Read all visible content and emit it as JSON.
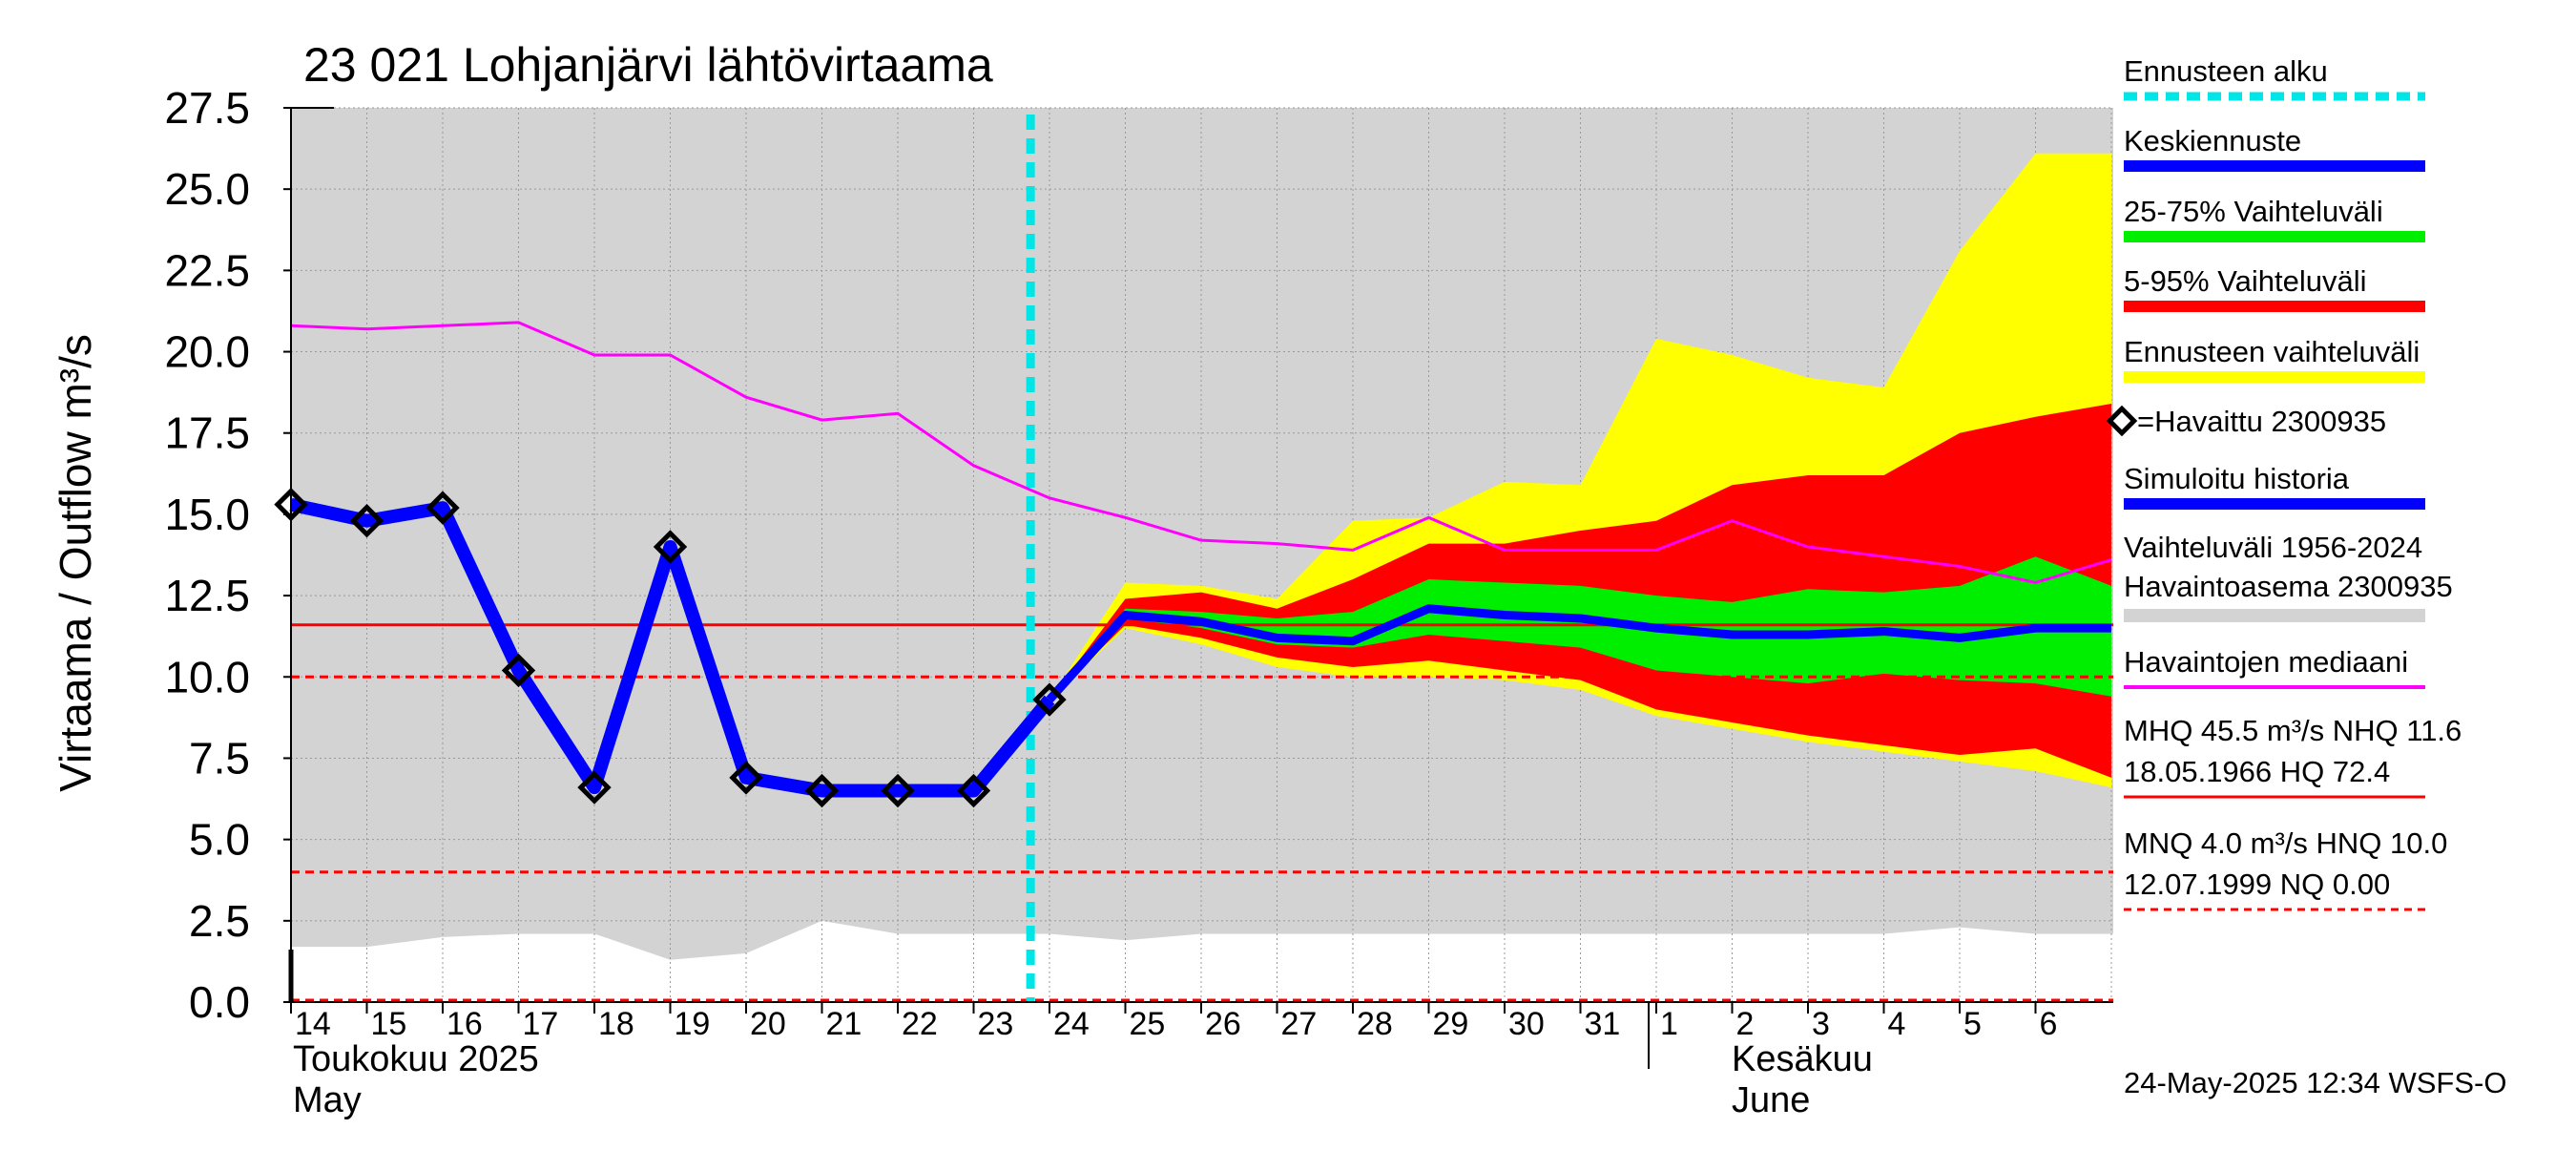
{
  "chart_data": {
    "type": "line",
    "title": "23 021 Lohjanjärvi lähtövirtaama",
    "ylabel": "Virtaama / Outflow    m³/s",
    "ylim": [
      0,
      27.5
    ],
    "y_ticks": [
      "0.0",
      "2.5",
      "5.0",
      "7.5",
      "10.0",
      "12.5",
      "15.0",
      "17.5",
      "20.0",
      "22.5",
      "25.0",
      "27.5"
    ],
    "x_day_labels": [
      "14",
      "15",
      "16",
      "17",
      "18",
      "19",
      "20",
      "21",
      "22",
      "23",
      "24",
      "25",
      "26",
      "27",
      "28",
      "29",
      "30",
      "31",
      "1",
      "2",
      "3",
      "4",
      "5",
      "6"
    ],
    "month_labels": {
      "may_fi": "Toukokuu  2025",
      "may_en": "May",
      "june_fi": "Kesäkuu",
      "june_en": "June"
    },
    "forecast_start_day": 23.75,
    "series": [
      {
        "name": "Havaittu 2300935",
        "color": "#000000",
        "x": [
          0,
          1,
          2,
          3,
          4,
          5,
          6,
          7,
          8,
          9,
          10
        ],
        "values": [
          15.3,
          14.8,
          15.2,
          10.2,
          6.6,
          14.0,
          6.9,
          6.5,
          6.5,
          6.5,
          9.3
        ]
      },
      {
        "name": "Keskiennuste",
        "color": "#0000ff",
        "x": [
          10,
          11,
          12,
          13,
          14,
          15,
          16,
          17,
          18,
          19,
          20,
          21,
          22,
          23,
          24
        ],
        "values": [
          9.3,
          11.9,
          11.7,
          11.2,
          11.1,
          12.1,
          11.9,
          11.8,
          11.5,
          11.3,
          11.3,
          11.4,
          11.2,
          11.5,
          11.5
        ]
      },
      {
        "name": "Havaintojen mediaani",
        "color": "#ff00ff",
        "x": [
          0,
          1,
          2,
          3,
          4,
          5,
          6,
          7,
          8,
          9,
          10,
          11,
          12,
          13,
          14,
          15,
          16,
          17,
          18,
          19,
          20,
          21,
          22,
          23,
          24
        ],
        "values": [
          20.8,
          20.7,
          20.8,
          20.9,
          19.9,
          19.9,
          18.6,
          17.9,
          18.1,
          16.5,
          15.5,
          14.9,
          14.2,
          14.1,
          13.9,
          14.9,
          13.9,
          13.9,
          13.9,
          14.8,
          14.0,
          13.7,
          13.4,
          12.9,
          13.6
        ]
      }
    ],
    "bands": [
      {
        "name": "Ennusteen vaihteluväli",
        "color": "#ffff00",
        "x": [
          10,
          11,
          12,
          13,
          14,
          15,
          16,
          17,
          18,
          19,
          20,
          21,
          22,
          23,
          24
        ],
        "lower": [
          9.3,
          11.5,
          11.0,
          10.3,
          10.0,
          10.0,
          9.9,
          9.6,
          8.8,
          8.4,
          8.0,
          7.7,
          7.4,
          7.1,
          6.6
        ],
        "upper": [
          9.3,
          12.9,
          12.8,
          12.4,
          14.8,
          14.9,
          16.0,
          15.9,
          20.4,
          19.9,
          19.2,
          18.9,
          23.1,
          26.1,
          26.1
        ]
      },
      {
        "name": "5-95% Vaihteluväli",
        "color": "#ff0000",
        "x": [
          10,
          11,
          12,
          13,
          14,
          15,
          16,
          17,
          18,
          19,
          20,
          21,
          22,
          23,
          24
        ],
        "lower": [
          9.3,
          11.6,
          11.2,
          10.6,
          10.3,
          10.5,
          10.2,
          9.9,
          9.0,
          8.6,
          8.2,
          7.9,
          7.6,
          7.8,
          6.9
        ],
        "upper": [
          9.3,
          12.4,
          12.6,
          12.1,
          13.0,
          14.1,
          14.1,
          14.5,
          14.8,
          15.9,
          16.2,
          16.2,
          17.5,
          18.0,
          18.4
        ]
      },
      {
        "name": "25-75% Vaihteluväli",
        "color": "#00ee00",
        "x": [
          10,
          11,
          12,
          13,
          14,
          15,
          16,
          17,
          18,
          19,
          20,
          21,
          22,
          23,
          24
        ],
        "lower": [
          9.3,
          11.8,
          11.5,
          11.0,
          10.9,
          11.3,
          11.1,
          10.9,
          10.2,
          10.0,
          9.8,
          10.1,
          9.9,
          9.8,
          9.4
        ],
        "upper": [
          9.3,
          12.1,
          12.0,
          11.8,
          12.0,
          13.0,
          12.9,
          12.8,
          12.5,
          12.3,
          12.7,
          12.6,
          12.8,
          13.7,
          12.8
        ]
      }
    ],
    "historical_range": {
      "name": "Vaihteluväli 1956-2024 Havaintoasema 2300935",
      "color": "#d3d3d3",
      "x": [
        0,
        1,
        2,
        3,
        4,
        5,
        6,
        7,
        8,
        9,
        10,
        11,
        12,
        13,
        14,
        15,
        16,
        17,
        18,
        19,
        20,
        21,
        22,
        23,
        24
      ],
      "lower": [
        1.7,
        1.7,
        2.0,
        2.1,
        2.1,
        1.3,
        1.5,
        2.5,
        2.1,
        2.1,
        2.1,
        1.9,
        2.1,
        2.1,
        2.1,
        2.1,
        2.1,
        2.1,
        2.1,
        2.1,
        2.1,
        2.1,
        2.3,
        2.1,
        2.1
      ],
      "upper": 27.5
    },
    "reference_lines": [
      {
        "name": "NHQ",
        "value": 11.6,
        "style": "solid",
        "color": "#ff0000"
      },
      {
        "name": "HNQ",
        "value": 10.0,
        "style": "dashed",
        "color": "#ff0000"
      },
      {
        "name": "MNQ",
        "value": 4.0,
        "style": "dashed",
        "color": "#ff0000"
      },
      {
        "name": "NQ",
        "value": 0.0,
        "style": "dashed",
        "color": "#ff0000"
      }
    ]
  },
  "legend": {
    "forecast_start": "Ennusteen alku",
    "median_forecast": "Keskiennuste",
    "range_25_75": "25-75% Vaihteluväli",
    "range_5_95": "5-95% Vaihteluväli",
    "forecast_range": "Ennusteen vaihteluväli",
    "observed": "=Havaittu 2300935",
    "simulated": "Simuloitu historia",
    "hist_range_1": "Vaihteluväli 1956-2024",
    "hist_range_2": " Havaintoasema 2300935",
    "obs_median": "Havaintojen mediaani",
    "mhq_line1": "MHQ 45.5 m³/s NHQ 11.6",
    "mhq_line2": "18.05.1966 HQ 72.4",
    "mnq_line1": "MNQ  4.0 m³/s HNQ 10.0",
    "mnq_line2": "12.07.1999 NQ 0.00"
  },
  "colors": {
    "cyan": "#00e5e5",
    "blue": "#0000ff",
    "green": "#00ee00",
    "red": "#ff0000",
    "yellow": "#ffff00",
    "magenta": "#ff00ff",
    "gray": "#d3d3d3"
  },
  "footer": {
    "timestamp": "24-May-2025 12:34 WSFS-O"
  }
}
